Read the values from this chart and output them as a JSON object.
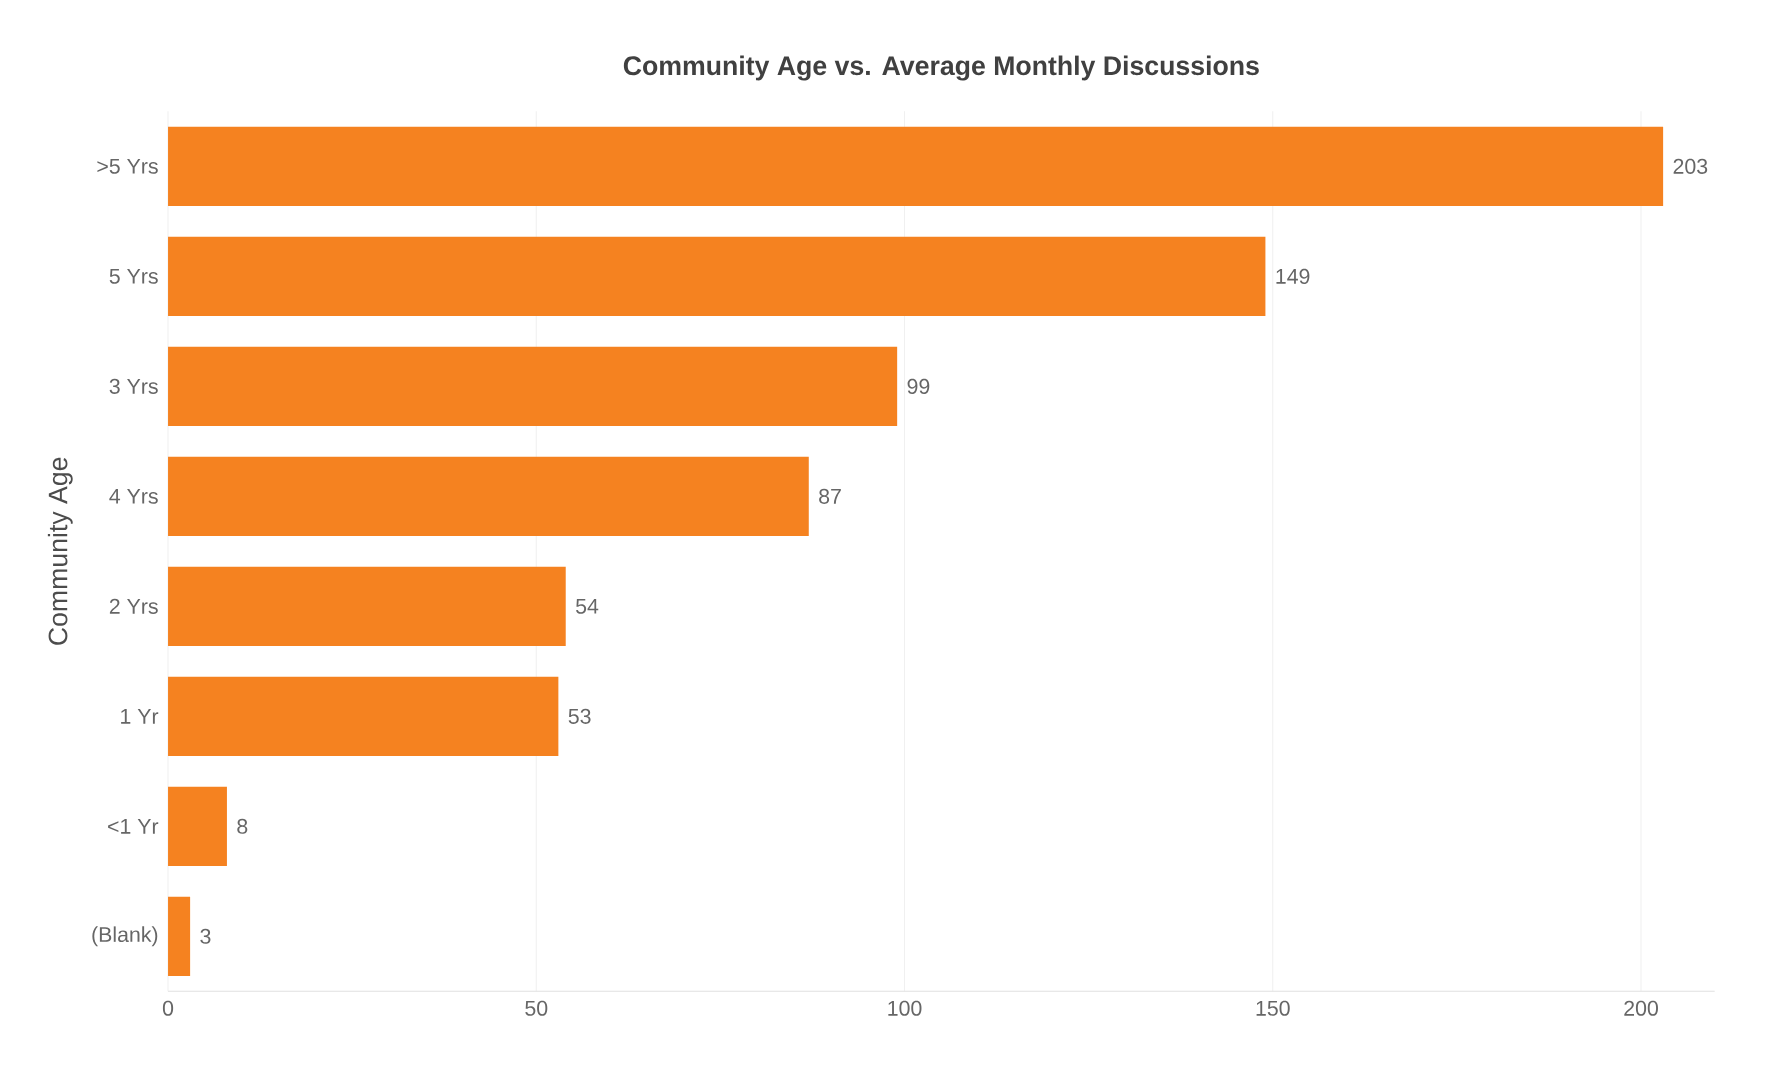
{
  "chart_data": {
    "type": "bar",
    "orientation": "horizontal",
    "title": "Community Age vs. Average Monthly Discussions",
    "ylabel": "Community Age",
    "categories": [
      ">5 Yrs",
      "5 Yrs",
      "3 Yrs",
      "4 Yrs",
      "2 Yrs",
      "1 Yr",
      "<1 Yr",
      "(Blank)"
    ],
    "values": [
      203,
      149,
      99,
      87,
      54,
      53,
      8,
      3
    ],
    "color": "#f58220",
    "data_labels": true,
    "grid": "x",
    "xlim": [
      0,
      210
    ],
    "xticks": [
      0,
      50,
      100,
      150,
      200
    ]
  }
}
